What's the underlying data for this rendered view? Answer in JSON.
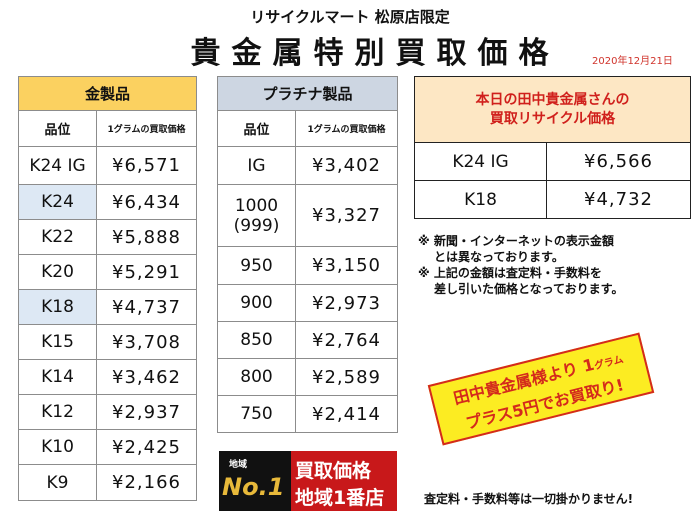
{
  "header": {
    "subtitle": "リサイクルマート 松原店限定",
    "title": "貴金属特別買取価格",
    "date": "2020年12月21日"
  },
  "gold": {
    "title": "金製品",
    "col_grade": "品位",
    "col_price": "1グラムの買取価格",
    "rows": [
      {
        "grade": "K24 IG",
        "price": "¥6,571"
      },
      {
        "grade": "K24",
        "price": "¥6,434"
      },
      {
        "grade": "K22",
        "price": "¥5,888"
      },
      {
        "grade": "K20",
        "price": "¥5,291"
      },
      {
        "grade": "K18",
        "price": "¥4,737"
      },
      {
        "grade": "K15",
        "price": "¥3,708"
      },
      {
        "grade": "K14",
        "price": "¥3,462"
      },
      {
        "grade": "K12",
        "price": "¥2,937"
      },
      {
        "grade": "K10",
        "price": "¥2,425"
      },
      {
        "grade": "K9",
        "price": "¥2,166"
      }
    ]
  },
  "platinum": {
    "title": "プラチナ製品",
    "col_grade": "品位",
    "col_price": "1グラムの買取価格",
    "rows": [
      {
        "grade": "IG",
        "price": "¥3,402"
      },
      {
        "grade": "1000",
        "grade2": "(999)",
        "price": "¥3,327"
      },
      {
        "grade": "950",
        "price": "¥3,150"
      },
      {
        "grade": "900",
        "price": "¥2,973"
      },
      {
        "grade": "850",
        "price": "¥2,764"
      },
      {
        "grade": "800",
        "price": "¥2,589"
      },
      {
        "grade": "750",
        "price": "¥2,414"
      }
    ]
  },
  "tanaka": {
    "title_line1": "本日の田中貴金属さんの",
    "title_line2": "買取リサイクル価格",
    "rows": [
      {
        "grade": "K24 IG",
        "price": "¥6,566"
      },
      {
        "grade": "K18",
        "price": "¥4,732"
      }
    ]
  },
  "notes": {
    "n1a": "※ 新聞・インターネットの表示金額",
    "n1b": "とは異なっております。",
    "n2a": "※ 上記の金額は査定料・手数料を",
    "n2b": "差し引いた価格となっております。"
  },
  "promo": {
    "line1a": "田中貴金属様より 1",
    "line1_unit": "グラム",
    "line2": "プラス5円でお買取り!"
  },
  "badge": {
    "region": "地域",
    "no1": "No.1",
    "line1": "買取価格",
    "line2": "地域1番店"
  },
  "footer": "査定料・手数料等は一切掛かりません!",
  "colors": {
    "gold_header": "#fbd160",
    "platinum_header": "#cdd6e2",
    "highlight": "#dde8f4",
    "accent_red": "#d0201c",
    "promo_yellow": "#fcec22"
  }
}
